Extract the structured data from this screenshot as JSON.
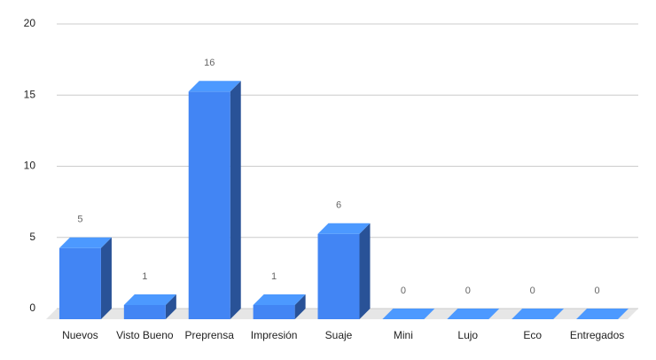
{
  "chart_data": {
    "type": "bar3d",
    "categories": [
      "Nuevos",
      "Visto Bueno",
      "Preprensa",
      "Impresión",
      "Suaje",
      "Mini",
      "Lujo",
      "Eco",
      "Entregados"
    ],
    "values": [
      5,
      1,
      16,
      1,
      6,
      0,
      0,
      0,
      0
    ],
    "color": "#4285f4",
    "ylim": [
      0,
      20
    ],
    "yticks": [
      0,
      5,
      10,
      15,
      20
    ],
    "grid": true
  }
}
